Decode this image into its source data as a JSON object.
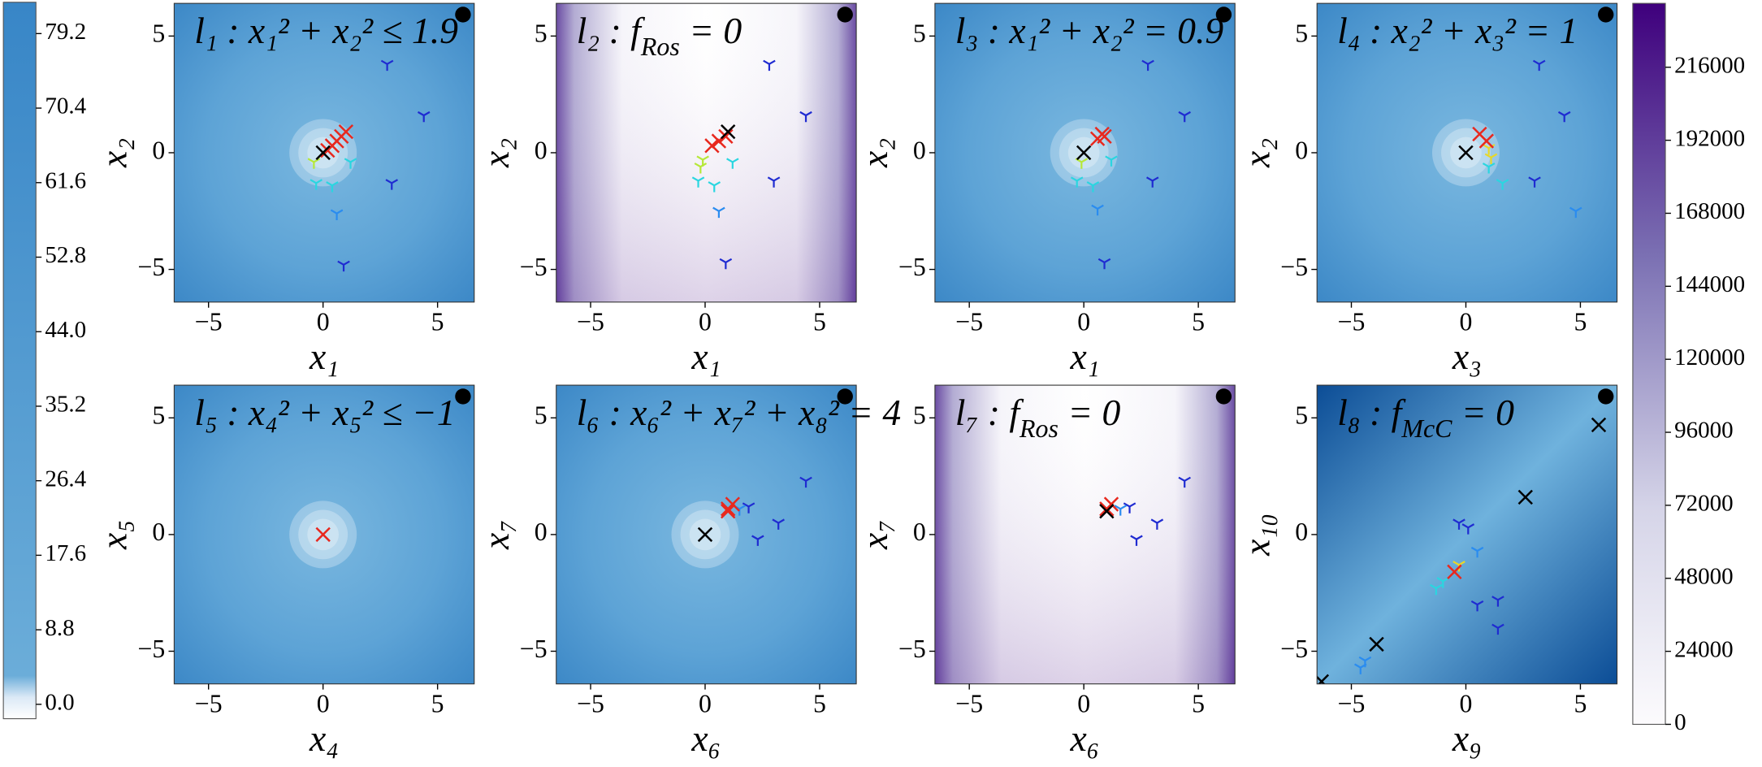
{
  "chart_data": [
    {
      "type": "colorbar",
      "cmap": "Blues",
      "ylim": [
        -1.7,
        82.9
      ],
      "yticks": [
        {
          "value": 0,
          "label": "0.0"
        },
        8.8,
        17.6,
        26.4,
        35.2,
        {
          "value": 44,
          "label": "44.0"
        },
        52.8,
        61.6,
        70.4,
        79.2
      ]
    },
    {
      "type": "scatter",
      "title": [
        "l₁ : x₁² + x₂² ≤ 1.9"
      ],
      "xlabel": "x₁",
      "ylabel": "x₂",
      "background": "bowl",
      "halo": [
        0,
        0
      ],
      "xlim": [
        -6.5,
        6.6
      ],
      "ylim": [
        -6.4,
        6.4
      ],
      "xticks": [
        {
          "value": -5,
          "label": "−5"
        },
        0,
        5
      ],
      "yticks": [
        {
          "value": -5,
          "label": "−5"
        },
        0,
        5
      ],
      "series": [
        {
          "marker": "tri",
          "color": "#1f2bd1",
          "x": [
            2.8,
            4.4,
            3.0,
            0.9
          ],
          "y": [
            3.8,
            1.6,
            -1.3,
            -4.8
          ]
        },
        {
          "marker": "tri",
          "color": "#2a8cf0",
          "x": [
            0.6
          ],
          "y": [
            -2.6
          ]
        },
        {
          "marker": "tri",
          "color": "#2ad6e0",
          "x": [
            1.2,
            0.4,
            -0.3
          ],
          "y": [
            -0.4,
            -1.4,
            -1.3
          ]
        },
        {
          "marker": "tri",
          "color": "#b6e838",
          "x": [
            -0.4
          ],
          "y": [
            -0.4
          ]
        },
        {
          "marker": "x",
          "color": "#e8281e",
          "x": [
            0.2,
            0.4,
            0.6,
            0.8,
            1.0
          ],
          "y": [
            0.1,
            0.3,
            0.5,
            0.7,
            0.9
          ]
        },
        {
          "marker": "x",
          "color": "#000000",
          "x": [
            0
          ],
          "y": [
            0
          ]
        }
      ]
    },
    {
      "type": "scatter",
      "title": [
        "l₂ : f",
        "Ros",
        " = 0"
      ],
      "xlabel": "x₁",
      "ylabel": "x₂",
      "background": "valley",
      "xlim": [
        -6.5,
        6.6
      ],
      "ylim": [
        -6.4,
        6.4
      ],
      "xticks": [
        {
          "value": -5,
          "label": "−5"
        },
        0,
        5
      ],
      "yticks": [
        {
          "value": -5,
          "label": "−5"
        },
        0,
        5
      ],
      "series": [
        {
          "marker": "tri",
          "color": "#1f2bd1",
          "x": [
            2.8,
            4.4,
            3.0,
            0.9
          ],
          "y": [
            3.8,
            1.6,
            -1.2,
            -4.7
          ]
        },
        {
          "marker": "tri",
          "color": "#2a8cf0",
          "x": [
            0.6
          ],
          "y": [
            -2.5
          ]
        },
        {
          "marker": "tri",
          "color": "#2ad6e0",
          "x": [
            1.2,
            0.4,
            -0.3
          ],
          "y": [
            -0.4,
            -1.4,
            -1.2
          ]
        },
        {
          "marker": "tri",
          "color": "#b6e838",
          "x": [
            -0.2,
            -0.1
          ],
          "y": [
            -0.6,
            -0.3
          ]
        },
        {
          "marker": "x",
          "color": "#e8281e",
          "x": [
            0.3,
            0.6,
            0.9
          ],
          "y": [
            0.3,
            0.5,
            0.7
          ]
        },
        {
          "marker": "x",
          "color": "#000000",
          "x": [
            1.0
          ],
          "y": [
            0.9
          ]
        }
      ]
    },
    {
      "type": "scatter",
      "title": [
        "l₃ : x₁² + x₂² = 0.9"
      ],
      "xlabel": "x₁",
      "ylabel": "x₂",
      "background": "bowl",
      "halo": [
        0,
        0
      ],
      "xlim": [
        -6.5,
        6.6
      ],
      "ylim": [
        -6.4,
        6.4
      ],
      "xticks": [
        {
          "value": -5,
          "label": "−5"
        },
        0,
        5
      ],
      "yticks": [
        {
          "value": -5,
          "label": "−5"
        },
        0,
        5
      ],
      "series": [
        {
          "marker": "tri",
          "color": "#1f2bd1",
          "x": [
            2.8,
            4.4,
            3.0,
            0.9
          ],
          "y": [
            3.8,
            1.6,
            -1.2,
            -4.7
          ]
        },
        {
          "marker": "tri",
          "color": "#2a8cf0",
          "x": [
            0.6
          ],
          "y": [
            -2.4
          ]
        },
        {
          "marker": "tri",
          "color": "#2ad6e0",
          "x": [
            1.2,
            0.4,
            -0.3
          ],
          "y": [
            -0.3,
            -1.4,
            -1.2
          ]
        },
        {
          "marker": "tri",
          "color": "#b6e838",
          "x": [
            -0.1
          ],
          "y": [
            -0.4
          ]
        },
        {
          "marker": "x",
          "color": "#e8281e",
          "x": [
            0.6,
            0.8,
            0.9
          ],
          "y": [
            0.6,
            0.8,
            0.7
          ]
        },
        {
          "marker": "x",
          "color": "#000000",
          "x": [
            0
          ],
          "y": [
            0
          ]
        }
      ]
    },
    {
      "type": "scatter",
      "title": [
        "l₄ : x₂² + x₃² = 1"
      ],
      "xlabel": "x₃",
      "ylabel": "x₂",
      "background": "bowl",
      "halo": [
        0,
        0
      ],
      "xlim": [
        -6.5,
        6.6
      ],
      "ylim": [
        -6.4,
        6.4
      ],
      "xticks": [
        {
          "value": -5,
          "label": "−5"
        },
        0,
        5
      ],
      "yticks": [
        {
          "value": -5,
          "label": "−5"
        },
        0,
        5
      ],
      "series": [
        {
          "marker": "tri",
          "color": "#1f2bd1",
          "x": [
            3.2,
            4.3,
            3.0
          ],
          "y": [
            3.8,
            1.6,
            -1.2
          ]
        },
        {
          "marker": "tri",
          "color": "#2a8cf0",
          "x": [
            4.8
          ],
          "y": [
            -2.5
          ]
        },
        {
          "marker": "tri",
          "color": "#2ad6e0",
          "x": [
            1.6,
            1.0
          ],
          "y": [
            -1.3,
            -0.6
          ]
        },
        {
          "marker": "tri",
          "color": "#e8d828",
          "x": [
            1.1,
            1.0
          ],
          "y": [
            -0.2,
            0.2
          ]
        },
        {
          "marker": "x",
          "color": "#e8281e",
          "x": [
            0.6,
            0.9
          ],
          "y": [
            0.8,
            0.5
          ]
        },
        {
          "marker": "x",
          "color": "#000000",
          "x": [
            0
          ],
          "y": [
            0
          ]
        }
      ]
    },
    {
      "type": "scatter",
      "title": [
        "l₅ : x₄² + x₅² ≤ −1"
      ],
      "xlabel": "x₄",
      "ylabel": "x₅",
      "background": "bowl",
      "halo": [
        0,
        0
      ],
      "xlim": [
        -6.5,
        6.6
      ],
      "ylim": [
        -6.4,
        6.4
      ],
      "xticks": [
        {
          "value": -5,
          "label": "−5"
        },
        0,
        5
      ],
      "yticks": [
        {
          "value": -5,
          "label": "−5"
        },
        0,
        5
      ],
      "series": [
        {
          "marker": "x",
          "color": "#e8281e",
          "x": [
            0
          ],
          "y": [
            0
          ]
        }
      ]
    },
    {
      "type": "scatter",
      "title": [
        "l₆ : x₆² + x₇² + x₈² = 4"
      ],
      "xlabel": "x₆",
      "ylabel": "x₇",
      "background": "bowl",
      "halo": [
        0,
        0
      ],
      "xlim": [
        -6.5,
        6.6
      ],
      "ylim": [
        -6.4,
        6.4
      ],
      "xticks": [
        {
          "value": -5,
          "label": "−5"
        },
        0,
        5
      ],
      "yticks": [
        {
          "value": -5,
          "label": "−5"
        },
        0,
        5
      ],
      "series": [
        {
          "marker": "tri",
          "color": "#1f2bd1",
          "x": [
            4.4,
            3.2,
            2.3,
            1.9
          ],
          "y": [
            2.3,
            0.5,
            -0.2,
            1.2
          ]
        },
        {
          "marker": "tri",
          "color": "#2a8cf0",
          "x": [
            1.5
          ],
          "y": [
            1.1
          ]
        },
        {
          "marker": "x",
          "color": "#e8281e",
          "x": [
            1.0,
            1.2,
            1.0
          ],
          "y": [
            1.1,
            1.3,
            1.0
          ]
        },
        {
          "marker": "x",
          "color": "#000000",
          "x": [
            0
          ],
          "y": [
            0
          ]
        }
      ]
    },
    {
      "type": "scatter",
      "title": [
        "l₇ : f",
        "Ros",
        " = 0"
      ],
      "xlabel": "x₆",
      "ylabel": "x₇",
      "background": "valley",
      "xlim": [
        -6.5,
        6.6
      ],
      "ylim": [
        -6.4,
        6.4
      ],
      "xticks": [
        {
          "value": -5,
          "label": "−5"
        },
        0,
        5
      ],
      "yticks": [
        {
          "value": -5,
          "label": "−5"
        },
        0,
        5
      ],
      "series": [
        {
          "marker": "tri",
          "color": "#1f2bd1",
          "x": [
            4.4,
            3.2,
            2.3,
            2.0
          ],
          "y": [
            2.3,
            0.5,
            -0.2,
            1.2
          ]
        },
        {
          "marker": "tri",
          "color": "#2a8cf0",
          "x": [
            1.6
          ],
          "y": [
            1.1
          ]
        },
        {
          "marker": "x",
          "color": "#e8281e",
          "x": [
            1.0,
            1.2
          ],
          "y": [
            1.1,
            1.3
          ]
        },
        {
          "marker": "x",
          "color": "#000000",
          "x": [
            1.0
          ],
          "y": [
            1.0
          ]
        }
      ]
    },
    {
      "type": "scatter",
      "title": [
        "l₈ : f",
        "McC",
        " = 0"
      ],
      "xlabel": "x₉",
      "ylabel": "x₁₀",
      "background": "ridge",
      "xlim": [
        -6.5,
        6.6
      ],
      "ylim": [
        -6.4,
        6.4
      ],
      "xticks": [
        {
          "value": -5,
          "label": "−5"
        },
        0,
        5
      ],
      "yticks": [
        {
          "value": -5,
          "label": "−5"
        },
        0,
        5
      ],
      "series": [
        {
          "marker": "x",
          "color": "#000000",
          "x": [
            5.8,
            2.6,
            -3.9,
            -6.3
          ],
          "y": [
            4.7,
            1.6,
            -4.7,
            -6.3
          ]
        },
        {
          "marker": "tri",
          "color": "#1f2bd1",
          "x": [
            -0.3,
            0.1,
            1.4,
            0.5,
            1.4
          ],
          "y": [
            0.5,
            0.3,
            -2.8,
            -3.0,
            -4.0
          ]
        },
        {
          "marker": "tri",
          "color": "#2a8cf0",
          "x": [
            0.5,
            -4.4,
            -4.6
          ],
          "y": [
            -0.7,
            -5.4,
            -5.7
          ]
        },
        {
          "marker": "tri",
          "color": "#2ad6e0",
          "x": [
            -1.3,
            -1.0
          ],
          "y": [
            -2.3,
            -2.0
          ]
        },
        {
          "marker": "tri",
          "color": "#e8d828",
          "x": [
            -0.3
          ],
          "y": [
            -1.3
          ]
        },
        {
          "marker": "x",
          "color": "#e8281e",
          "x": [
            -0.5
          ],
          "y": [
            -1.6
          ]
        }
      ]
    },
    {
      "type": "colorbar",
      "cmap": "Purples",
      "ylim": [
        0,
        237000
      ],
      "yticks": [
        0,
        24000,
        48000,
        72000,
        96000,
        120000,
        144000,
        168000,
        192000,
        216000
      ]
    }
  ]
}
